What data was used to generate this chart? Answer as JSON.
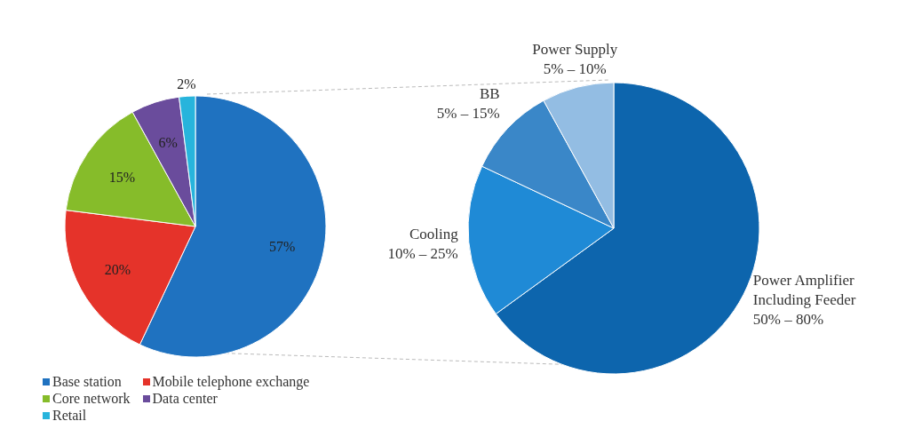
{
  "chart_data": [
    {
      "type": "pie",
      "categories": [
        "Base station",
        "Mobile telephone exchange",
        "Core network",
        "Data center",
        "Retail"
      ],
      "values": [
        57,
        20,
        15,
        6,
        2
      ],
      "value_labels": [
        "57%",
        "20%",
        "15%",
        "6%",
        "2%"
      ],
      "colors": [
        "#1f72c0",
        "#e5332a",
        "#86bc2a",
        "#6a4c9c",
        "#27b4dc"
      ],
      "legend": "bottom"
    },
    {
      "type": "pie",
      "categories": [
        "Power Amplifier Including Feeder 50% – 80%",
        "Cooling 10% – 25%",
        "BB 5% – 15%",
        "Power Supply 5% – 10%"
      ],
      "values": [
        65,
        17,
        10,
        8
      ],
      "colors": [
        "#0d65ad",
        "#1f8ad6",
        "#3a87c8",
        "#93bde3"
      ]
    }
  ]
}
